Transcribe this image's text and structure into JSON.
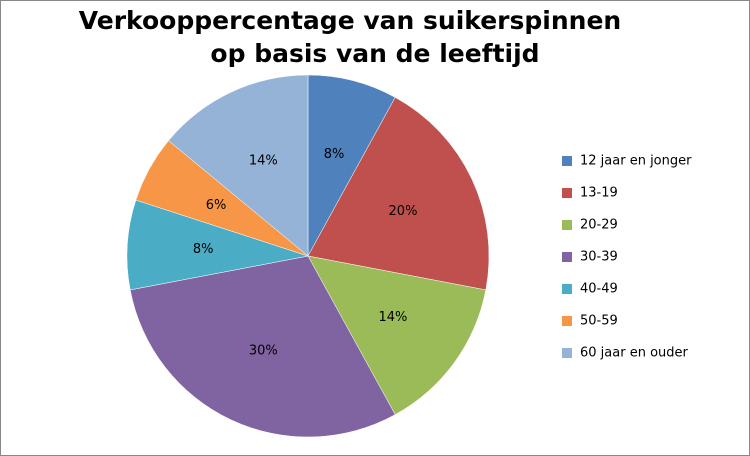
{
  "chart_data": {
    "type": "pie",
    "title": [
      "Verkooppercentage van suikerspinnen",
      "op basis van de leeftijd"
    ],
    "categories": [
      "12 jaar en jonger",
      "13-19",
      "20-29",
      "30-39",
      "40-49",
      "50-59",
      "60 jaar en ouder"
    ],
    "values": [
      8,
      20,
      14,
      30,
      8,
      6,
      14
    ],
    "value_labels": [
      "8%",
      "20%",
      "14%",
      "30%",
      "8%",
      "6%",
      "14%"
    ],
    "colors": [
      "#4f81bd",
      "#c0504d",
      "#9bbb59",
      "#8064a2",
      "#4bacc6",
      "#f79646",
      "#95b3d7"
    ],
    "legend": "right"
  }
}
